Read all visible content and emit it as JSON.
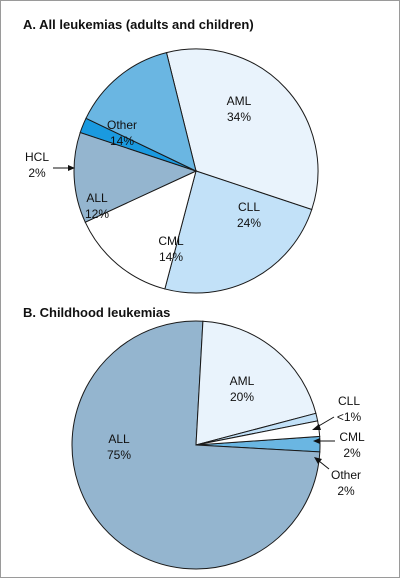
{
  "chart_data": [
    {
      "type": "pie",
      "title": "A.  All leukemias (adults and children)",
      "start_angle_deg": -104,
      "slices": [
        {
          "key": "aml",
          "label": "AML",
          "value_text": "34%",
          "value": 34,
          "color": "#e9f3fc"
        },
        {
          "key": "cll",
          "label": "CLL",
          "value_text": "24%",
          "value": 24,
          "color": "#c2e1f8"
        },
        {
          "key": "cml",
          "label": "CML",
          "value_text": "14%",
          "value": 14,
          "color": "#ffffff"
        },
        {
          "key": "all",
          "label": "ALL",
          "value_text": "12%",
          "value": 12,
          "color": "#94b5cf"
        },
        {
          "key": "hcl",
          "label": "HCL",
          "value_text": "2%",
          "value": 2,
          "color": "#1a9ae0"
        },
        {
          "key": "other",
          "label": "Other",
          "value_text": "14%",
          "value": 14,
          "color": "#6ab6e2"
        }
      ]
    },
    {
      "type": "pie",
      "title": "B.  Childhood leukemias",
      "start_angle_deg": -4,
      "slices": [
        {
          "key": "other",
          "label": "Other",
          "value_text": "2%",
          "value": 2,
          "color": "#6ab6e2"
        },
        {
          "key": "all",
          "label": "ALL",
          "value_text": "75%",
          "value": 75,
          "color": "#94b5cf"
        },
        {
          "key": "aml",
          "label": "AML",
          "value_text": "20%",
          "value": 20,
          "color": "#e9f3fc"
        },
        {
          "key": "cll",
          "label": "CLL",
          "value_text": "<1%",
          "value": 1,
          "color": "#c2e1f8"
        },
        {
          "key": "cml",
          "label": "CML",
          "value_text": "2%",
          "value": 2,
          "color": "#ffffff"
        }
      ]
    }
  ]
}
